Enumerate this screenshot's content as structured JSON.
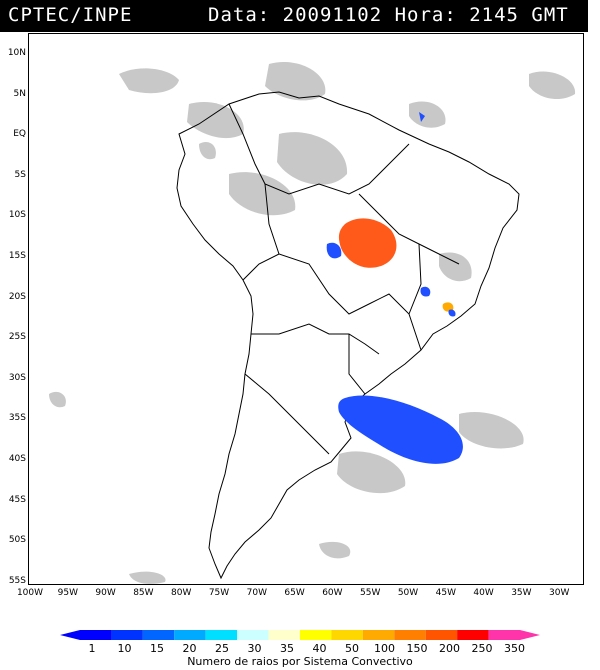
{
  "header": {
    "source": "CPTEC/INPE",
    "info": "Data: 20091102 Hora: 2145 GMT"
  },
  "axes": {
    "lat_ticks": [
      "10N",
      "5N",
      "EQ",
      "5S",
      "10S",
      "15S",
      "20S",
      "25S",
      "30S",
      "35S",
      "40S",
      "45S",
      "50S",
      "55S"
    ],
    "lon_ticks": [
      "100W",
      "95W",
      "90W",
      "85W",
      "80W",
      "75W",
      "70W",
      "65W",
      "60W",
      "55W",
      "50W",
      "45W",
      "40W",
      "35W",
      "30W"
    ]
  },
  "colorbar": {
    "labels": [
      "1",
      "10",
      "15",
      "20",
      "25",
      "30",
      "35",
      "40",
      "50",
      "100",
      "150",
      "200",
      "250",
      "350"
    ],
    "colors": [
      "#0000ff",
      "#0033ff",
      "#0066ff",
      "#00aaff",
      "#00dfff",
      "#ccffff",
      "#ffffcc",
      "#ffff00",
      "#ffd700",
      "#ffaa00",
      "#ff8000",
      "#ff5500",
      "#ff0000",
      "#ff33aa"
    ],
    "title": "Numero de raios por Sistema Convectivo"
  },
  "colors": {
    "cloud": "#c8c8c8",
    "blue_system": "#1f4fff",
    "orange_system": "#ff5a1a",
    "yellow_system": "#ffaa00"
  }
}
